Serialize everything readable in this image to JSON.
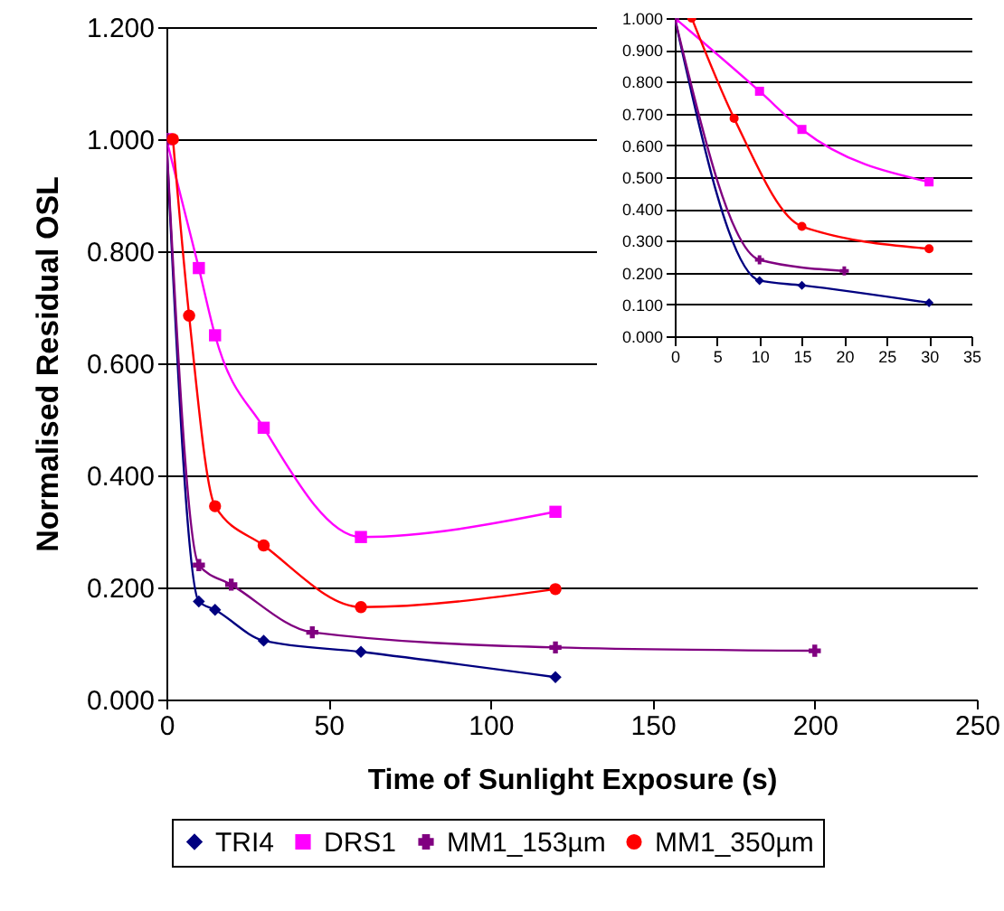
{
  "chart_data": [
    {
      "type": "line",
      "xlabel": "Time of Sunlight Exposure (s)",
      "ylabel": "Normalised Residual OSL",
      "xlim": [
        0,
        250
      ],
      "xticks": [
        0,
        50,
        100,
        150,
        200,
        250
      ],
      "ylim": [
        0,
        1.2
      ],
      "yticks": [
        {
          "value": 0,
          "label": "0.000"
        },
        {
          "value": 0.2,
          "label": "0.200"
        },
        {
          "value": 0.4,
          "label": "0.400"
        },
        {
          "value": 0.6,
          "label": "0.600"
        },
        {
          "value": 0.8,
          "label": "0.800"
        },
        {
          "value": 1,
          "label": "1.000"
        },
        {
          "value": 1.2,
          "label": "1.200"
        }
      ],
      "grid": "y",
      "legend": "bottom",
      "series": [
        {
          "name": "TRI4",
          "color": "#000080",
          "marker": "diamond",
          "x": [
            0,
            10,
            15,
            30,
            60,
            120
          ],
          "values": [
            1.0,
            0.175,
            0.16,
            0.105,
            0.085,
            0.04
          ]
        },
        {
          "name": "DRS1",
          "color": "#ff00ff",
          "marker": "square",
          "x": [
            0,
            10,
            15,
            30,
            60,
            120
          ],
          "values": [
            1.0,
            0.77,
            0.65,
            0.485,
            0.29,
            0.335
          ]
        },
        {
          "name": "MM1_153µm",
          "color": "#800080",
          "marker": "cross",
          "x": [
            0,
            10,
            20,
            45,
            120,
            200
          ],
          "values": [
            1.0,
            0.24,
            0.205,
            0.12,
            0.093,
            0.087
          ]
        },
        {
          "name": "MM1_350µm",
          "color": "#ff0000",
          "marker": "circle",
          "x": [
            2,
            7,
            15,
            30,
            60,
            120
          ],
          "values": [
            1.0,
            0.685,
            0.345,
            0.275,
            0.165,
            0.197
          ]
        }
      ]
    },
    {
      "type": "line",
      "xlim": [
        0,
        35
      ],
      "xticks": [
        0,
        5,
        10,
        15,
        20,
        25,
        30,
        35
      ],
      "ylim": [
        0,
        1
      ],
      "yticks": [
        {
          "value": 0,
          "label": "0.000"
        },
        {
          "value": 0.1,
          "label": "0.100"
        },
        {
          "value": 0.2,
          "label": "0.200"
        },
        {
          "value": 0.3,
          "label": "0.300"
        },
        {
          "value": 0.4,
          "label": "0.400"
        },
        {
          "value": 0.5,
          "label": "0.500"
        },
        {
          "value": 0.6,
          "label": "0.600"
        },
        {
          "value": 0.7,
          "label": "0.700"
        },
        {
          "value": 0.8,
          "label": "0.800"
        },
        {
          "value": 0.9,
          "label": "0.900"
        },
        {
          "value": 1,
          "label": "1.000"
        }
      ],
      "grid": "y",
      "series": [
        {
          "color": "#000080",
          "marker": "diamond",
          "x": [
            0,
            10,
            15,
            30
          ],
          "values": [
            1.0,
            0.175,
            0.16,
            0.105
          ]
        },
        {
          "color": "#ff00ff",
          "marker": "square",
          "x": [
            0,
            10,
            15,
            30
          ],
          "values": [
            1.0,
            0.77,
            0.65,
            0.485
          ]
        },
        {
          "color": "#800080",
          "marker": "cross",
          "x": [
            0,
            10,
            20
          ],
          "values": [
            1.0,
            0.24,
            0.205
          ]
        },
        {
          "color": "#ff0000",
          "marker": "circle",
          "x": [
            2,
            7,
            15,
            30
          ],
          "values": [
            1.0,
            0.685,
            0.345,
            0.275
          ]
        }
      ]
    }
  ]
}
